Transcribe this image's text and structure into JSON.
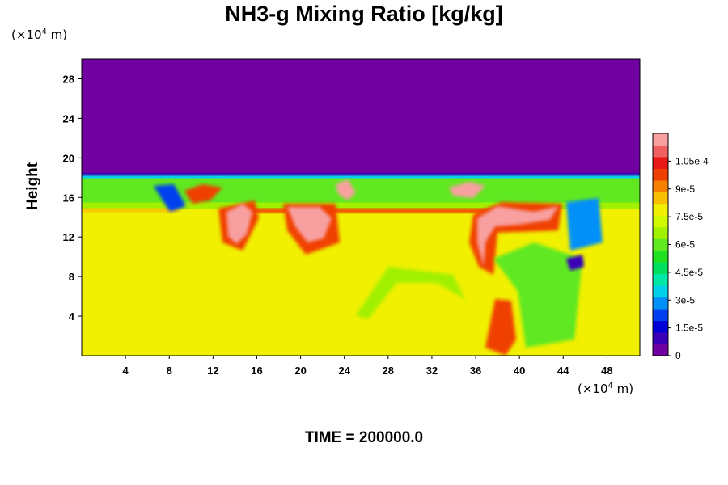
{
  "chart_data": {
    "type": "heatmap",
    "title": "NH3-g Mixing Ratio [kg/kg]",
    "ylabel": "Height",
    "x_unit": {
      "base": "(×10",
      "exp": "4",
      "rest": " m)"
    },
    "y_unit": {
      "base": "(×10",
      "exp": "4",
      "rest": " m)"
    },
    "xlim": [
      0,
      51
    ],
    "ylim": [
      0,
      30
    ],
    "x_ticks": [
      4,
      8,
      12,
      16,
      20,
      24,
      28,
      32,
      36,
      40,
      44,
      48
    ],
    "y_ticks": [
      4,
      8,
      12,
      16,
      20,
      24,
      28
    ],
    "colorbar": {
      "min": 0,
      "max": 0.00012,
      "labels": [
        {
          "value": 0,
          "text": "0"
        },
        {
          "value": 1.5e-05,
          "text": "1.5e-5"
        },
        {
          "value": 3e-05,
          "text": "3e-5"
        },
        {
          "value": 4.5e-05,
          "text": "4.5e-5"
        },
        {
          "value": 6e-05,
          "text": "6e-5"
        },
        {
          "value": 7.5e-05,
          "text": "7.5e-5"
        },
        {
          "value": 9e-05,
          "text": "9e-5"
        },
        {
          "value": 0.000105,
          "text": "1.05e-4"
        }
      ],
      "colors": [
        "#7000a0",
        "#3a00b8",
        "#0000d8",
        "#0040f0",
        "#0090f8",
        "#00d0e8",
        "#00e8a8",
        "#00e060",
        "#20e020",
        "#60e820",
        "#a0f000",
        "#d0f800",
        "#f0f000",
        "#f8c000",
        "#f88000",
        "#f04000",
        "#e81818",
        "#f06060",
        "#f8a0a0"
      ]
    },
    "regions": {
      "upper": 0,
      "interface_height": 18.5,
      "green_layer": 6e-05,
      "background": 7.8e-05,
      "strong_layer": 0.0001,
      "peaks": 0.000115
    },
    "time_label": "TIME = 200000.0"
  }
}
